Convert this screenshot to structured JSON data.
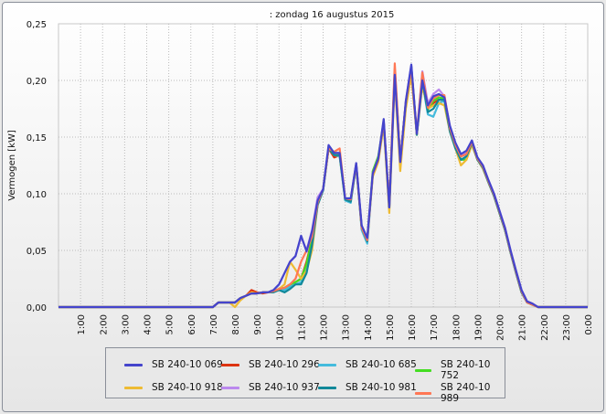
{
  "chart_data": {
    "type": "line",
    "title": ": zondag 16 augustus 2015",
    "ylabel": "Vermogen [kW]",
    "xlabel": "",
    "ylim": [
      0,
      0.25
    ],
    "yticks": [
      "0,00",
      "0,05",
      "0,10",
      "0,15",
      "0,20",
      "0,25"
    ],
    "xticks": [
      "1:00",
      "2:00",
      "3:00",
      "4:00",
      "5:00",
      "6:00",
      "7:00",
      "8:00",
      "9:00",
      "10:00",
      "11:00",
      "12:00",
      "13:00",
      "14:00",
      "15:00",
      "16:00",
      "17:00",
      "18:00",
      "19:00",
      "20:00",
      "21:00",
      "22:00",
      "23:00",
      "0:00"
    ],
    "xlim_hours": [
      0,
      24
    ],
    "series_step_hours": 0.25,
    "series_start_hour": 7,
    "zero_outside_range": true,
    "grid": true,
    "legend_position": "bottom",
    "series": [
      {
        "name": "SB 240-10 069",
        "color": "#4444cc",
        "values": [
          0,
          0.004,
          0.004,
          0.004,
          0.004,
          0.008,
          0.01,
          0.012,
          0.012,
          0.013,
          0.013,
          0.015,
          0.02,
          0.03,
          0.04,
          0.045,
          0.063,
          0.049,
          0.067,
          0.094,
          0.104,
          0.143,
          0.136,
          0.136,
          0.096,
          0.096,
          0.127,
          0.072,
          0.061,
          0.118,
          0.131,
          0.166,
          0.088,
          0.205,
          0.128,
          0.182,
          0.214,
          0.153,
          0.2,
          0.178,
          0.186,
          0.188,
          0.185,
          0.16,
          0.145,
          0.135,
          0.138,
          0.147,
          0.132,
          0.125,
          0.112,
          0.1,
          0.085,
          0.07,
          0.05,
          0.032,
          0.015,
          0.005,
          0.003,
          0
        ]
      },
      {
        "name": "SB 240-10 296",
        "color": "#dd3311",
        "values": [
          0,
          0.004,
          0.004,
          0.004,
          0.004,
          0.008,
          0.01,
          0.015,
          0.013,
          0.012,
          0.013,
          0.014,
          0.015,
          0.017,
          0.02,
          0.022,
          0.025,
          0.04,
          0.06,
          0.092,
          0.104,
          0.14,
          0.132,
          0.134,
          0.096,
          0.094,
          0.126,
          0.07,
          0.06,
          0.117,
          0.13,
          0.162,
          0.09,
          0.207,
          0.13,
          0.18,
          0.205,
          0.153,
          0.203,
          0.175,
          0.18,
          0.183,
          0.183,
          0.158,
          0.143,
          0.133,
          0.135,
          0.145,
          0.13,
          0.123,
          0.11,
          0.098,
          0.083,
          0.068,
          0.049,
          0.03,
          0.013,
          0.004,
          0.002,
          0
        ]
      },
      {
        "name": "SB 240-10 685",
        "color": "#44bbdd",
        "values": [
          0,
          0.004,
          0.004,
          0.004,
          0.004,
          0.008,
          0.01,
          0.012,
          0.012,
          0.013,
          0.013,
          0.014,
          0.016,
          0.015,
          0.018,
          0.02,
          0.022,
          0.035,
          0.058,
          0.09,
          0.103,
          0.14,
          0.134,
          0.133,
          0.094,
          0.092,
          0.125,
          0.068,
          0.056,
          0.116,
          0.13,
          0.163,
          0.087,
          0.208,
          0.13,
          0.18,
          0.21,
          0.152,
          0.198,
          0.17,
          0.168,
          0.18,
          0.182,
          0.155,
          0.14,
          0.13,
          0.132,
          0.143,
          0.13,
          0.122,
          0.11,
          0.098,
          0.083,
          0.068,
          0.048,
          0.03,
          0.013,
          0.004,
          0.002,
          0
        ]
      },
      {
        "name": "SB 240-10 752",
        "color": "#44dd22",
        "values": [
          0,
          0.004,
          0.004,
          0.004,
          0.004,
          0.008,
          0.01,
          0.012,
          0.012,
          0.013,
          0.013,
          0.014,
          0.016,
          0.017,
          0.02,
          0.022,
          0.025,
          0.038,
          0.06,
          0.092,
          0.104,
          0.141,
          0.134,
          0.134,
          0.095,
          0.094,
          0.126,
          0.07,
          0.059,
          0.12,
          0.133,
          0.163,
          0.088,
          0.204,
          0.129,
          0.18,
          0.212,
          0.152,
          0.2,
          0.174,
          0.182,
          0.185,
          0.184,
          0.157,
          0.142,
          0.13,
          0.13,
          0.145,
          0.13,
          0.123,
          0.11,
          0.098,
          0.083,
          0.068,
          0.049,
          0.031,
          0.014,
          0.004,
          0.002,
          0
        ]
      },
      {
        "name": "SB 240-10 918",
        "color": "#eebb33",
        "values": [
          0,
          0.004,
          0.004,
          0.004,
          0,
          0.006,
          0.01,
          0.013,
          0.012,
          0.013,
          0.013,
          0.014,
          0.016,
          0.02,
          0.04,
          0.033,
          0.025,
          0.032,
          0.05,
          0.09,
          0.104,
          0.14,
          0.134,
          0.134,
          0.095,
          0.094,
          0.125,
          0.07,
          0.06,
          0.115,
          0.128,
          0.16,
          0.083,
          0.2,
          0.12,
          0.175,
          0.205,
          0.152,
          0.195,
          0.175,
          0.178,
          0.18,
          0.178,
          0.155,
          0.14,
          0.125,
          0.13,
          0.143,
          0.13,
          0.122,
          0.11,
          0.098,
          0.083,
          0.068,
          0.048,
          0.03,
          0.013,
          0.004,
          0.002,
          0
        ]
      },
      {
        "name": "SB 240-10 937",
        "color": "#bb88ee",
        "values": [
          0,
          0.004,
          0.004,
          0.004,
          0.004,
          0.008,
          0.01,
          0.012,
          0.012,
          0.013,
          0.013,
          0.015,
          0.02,
          0.03,
          0.04,
          0.045,
          0.062,
          0.05,
          0.068,
          0.097,
          0.104,
          0.142,
          0.136,
          0.136,
          0.096,
          0.095,
          0.127,
          0.071,
          0.06,
          0.118,
          0.131,
          0.165,
          0.088,
          0.205,
          0.128,
          0.182,
          0.213,
          0.153,
          0.208,
          0.18,
          0.188,
          0.192,
          0.186,
          0.16,
          0.144,
          0.134,
          0.136,
          0.147,
          0.132,
          0.125,
          0.112,
          0.1,
          0.085,
          0.07,
          0.05,
          0.032,
          0.015,
          0.005,
          0.003,
          0
        ]
      },
      {
        "name": "SB 240-10 981",
        "color": "#118899",
        "values": [
          0,
          0.004,
          0.004,
          0.004,
          0.004,
          0.008,
          0.01,
          0.012,
          0.012,
          0.013,
          0.013,
          0.013,
          0.015,
          0.013,
          0.016,
          0.02,
          0.02,
          0.03,
          0.055,
          0.09,
          0.103,
          0.14,
          0.134,
          0.134,
          0.095,
          0.093,
          0.125,
          0.07,
          0.058,
          0.117,
          0.13,
          0.163,
          0.088,
          0.21,
          0.13,
          0.18,
          0.212,
          0.152,
          0.2,
          0.172,
          0.175,
          0.183,
          0.183,
          0.155,
          0.14,
          0.13,
          0.133,
          0.145,
          0.13,
          0.123,
          0.11,
          0.098,
          0.083,
          0.068,
          0.048,
          0.03,
          0.013,
          0.004,
          0.002,
          0
        ]
      },
      {
        "name": "SB 240-10 989",
        "color": "#ff7755",
        "values": [
          0,
          0.004,
          0.004,
          0.004,
          0.004,
          0.008,
          0.01,
          0.012,
          0.012,
          0.013,
          0.013,
          0.014,
          0.016,
          0.017,
          0.02,
          0.025,
          0.04,
          0.05,
          0.062,
          0.092,
          0.104,
          0.14,
          0.137,
          0.14,
          0.096,
          0.095,
          0.126,
          0.07,
          0.059,
          0.117,
          0.13,
          0.164,
          0.09,
          0.215,
          0.13,
          0.181,
          0.211,
          0.153,
          0.207,
          0.176,
          0.184,
          0.187,
          0.187,
          0.158,
          0.143,
          0.133,
          0.135,
          0.146,
          0.131,
          0.124,
          0.111,
          0.099,
          0.084,
          0.069,
          0.049,
          0.031,
          0.014,
          0.004,
          0.002,
          0
        ]
      }
    ]
  }
}
